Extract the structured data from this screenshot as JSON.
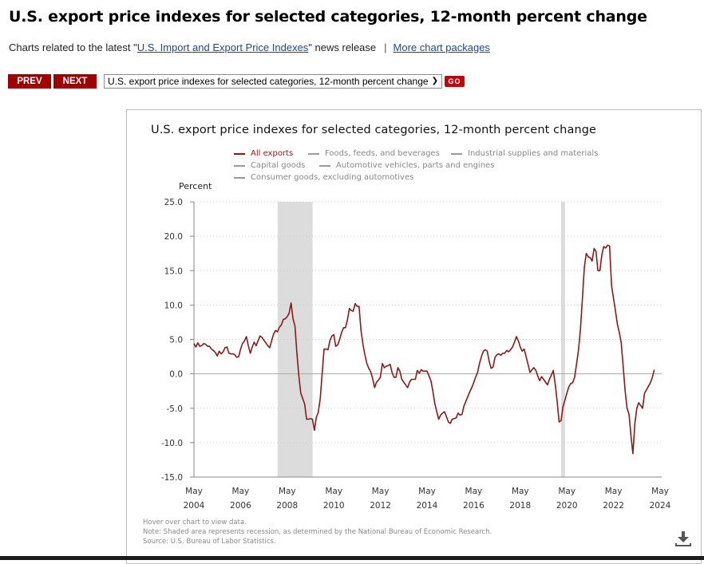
{
  "page": {
    "title": "U.S. export price indexes for selected categories, 12-month percent change",
    "subline": {
      "prefix": "Charts related to the latest \"",
      "release_link": "U.S. Import and Export Price Indexes",
      "suffix": "\" news release",
      "separator": "|",
      "more_link": "More chart packages"
    },
    "nav": {
      "prev_label": "PREV",
      "next_label": "NEXT",
      "select_value": "U.S. export price indexes for selected categories, 12-month percent change",
      "go_label": "GO"
    },
    "footnotes": [
      "Hover over chart to view data.",
      "Note: Shaded area represents recession, as determined by the National Bureau of Economic Research.",
      "Source: U.S. Bureau of Labor Statistics."
    ],
    "download_icon": "download-icon"
  },
  "colors": {
    "brand_red": "#a00000",
    "series_active": "#8b1a1a",
    "series_inactive": "#999999",
    "recession_shade": "#dcdcdc",
    "link": "#1a4a8c"
  },
  "chart_data": {
    "type": "line",
    "title": "U.S. export price indexes for selected categories, 12-month percent change",
    "xlabel": "",
    "ylabel": "Percent",
    "ylim": [
      -15.0,
      25.0
    ],
    "yticks": [
      "25.0",
      "20.0",
      "15.0",
      "10.0",
      "5.0",
      "0.0",
      "-5.0",
      "-10.0",
      "-15.0"
    ],
    "ytick_values": [
      25,
      20,
      15,
      10,
      5,
      0,
      -5,
      -10,
      -15
    ],
    "xticks": [
      {
        "month": "May",
        "year": "2004",
        "t": 2004.33
      },
      {
        "month": "May",
        "year": "2006",
        "t": 2006.33
      },
      {
        "month": "May",
        "year": "2008",
        "t": 2008.33
      },
      {
        "month": "May",
        "year": "2010",
        "t": 2010.33
      },
      {
        "month": "May",
        "year": "2012",
        "t": 2012.33
      },
      {
        "month": "May",
        "year": "2014",
        "t": 2014.33
      },
      {
        "month": "May",
        "year": "2016",
        "t": 2016.33
      },
      {
        "month": "May",
        "year": "2018",
        "t": 2018.33
      },
      {
        "month": "May",
        "year": "2020",
        "t": 2020.33
      },
      {
        "month": "May",
        "year": "2022",
        "t": 2022.33
      },
      {
        "month": "May",
        "year": "2024",
        "t": 2024.33
      }
    ],
    "xlim": [
      2004.33,
      2024.33
    ],
    "grid": "horizontal-dotted",
    "legend": {
      "placement": "top-center",
      "entries": [
        {
          "label": "All exports",
          "active": true
        },
        {
          "label": "Foods, feeds, and beverages",
          "active": false
        },
        {
          "label": "Industrial supplies and materials",
          "active": false
        },
        {
          "label": "Capital goods",
          "active": false
        },
        {
          "label": "Automotive vehicles, parts and engines",
          "active": false
        },
        {
          "label": "Consumer goods, excluding automotives",
          "active": false
        }
      ]
    },
    "recessions": [
      {
        "start": 2007.92,
        "end": 2009.42,
        "label": "Dec 2007 - Jun 2009"
      },
      {
        "start": 2020.08,
        "end": 2020.25,
        "label": "Feb 2020 - Apr 2020"
      }
    ],
    "series": [
      {
        "name": "All exports",
        "start": "May 2004",
        "frequency": "monthly",
        "values": [
          4.4,
          3.9,
          4.5,
          4.0,
          4.1,
          4.4,
          4.3,
          4.0,
          4.0,
          3.6,
          3.4,
          3.1,
          2.6,
          3.3,
          2.9,
          3.2,
          3.8,
          3.9,
          3.0,
          2.9,
          2.9,
          2.8,
          2.4,
          2.5,
          3.6,
          4.4,
          4.8,
          5.4,
          4.1,
          3.0,
          3.9,
          4.6,
          4.1,
          4.8,
          5.5,
          5.3,
          4.9,
          4.5,
          4.1,
          3.8,
          4.8,
          5.8,
          6.3,
          6.1,
          6.8,
          7.1,
          7.9,
          8.0,
          8.3,
          8.8,
          10.3,
          8.0,
          7.0,
          3.0,
          -0.3,
          -2.8,
          -3.6,
          -4.4,
          -6.6,
          -6.6,
          -6.5,
          -6.6,
          -8.2,
          -6.3,
          -5.6,
          -3.6,
          0.0,
          3.6,
          3.6,
          3.5,
          4.8,
          5.5,
          5.7,
          4.0,
          4.2,
          5.0,
          6.0,
          6.7,
          6.7,
          7.8,
          9.5,
          9.2,
          9.1,
          10.2,
          9.8,
          9.8,
          6.3,
          4.3,
          2.8,
          1.5,
          0.8,
          0.3,
          -0.7,
          -2.0,
          -1.2,
          -0.9,
          -0.5,
          1.5,
          0.9,
          1.1,
          1.2,
          1.4,
          0.2,
          -0.5,
          -0.5,
          0.9,
          0.4,
          -0.8,
          -1.2,
          -1.6,
          -2.0,
          -1.2,
          -0.8,
          -0.8,
          -0.8,
          0.5,
          0.1,
          0.6,
          0.4,
          0.4,
          0.4,
          -0.3,
          -1.0,
          -2.5,
          -4.3,
          -5.5,
          -6.6,
          -6.0,
          -5.7,
          -5.5,
          -6.2,
          -7.0,
          -7.2,
          -6.6,
          -6.5,
          -6.4,
          -5.7,
          -6.0,
          -5.9,
          -4.7,
          -4.0,
          -3.3,
          -2.6,
          -2.0,
          -1.3,
          -0.5,
          0.2,
          1.5,
          2.5,
          3.3,
          3.5,
          3.3,
          1.8,
          0.8,
          1.0,
          2.4,
          2.8,
          2.9,
          2.7,
          3.0,
          3.0,
          3.4,
          3.2,
          3.5,
          3.9,
          4.6,
          5.4,
          4.8,
          3.9,
          3.3,
          3.6,
          2.5,
          1.4,
          0.2,
          0.6,
          0.9,
          0.5,
          -0.3,
          -1.0,
          -0.4,
          -0.8,
          -1.2,
          -1.6,
          -0.8,
          -0.2,
          0.5,
          -1.5,
          -4.0,
          -7.0,
          -6.8,
          -4.8,
          -3.8,
          -2.8,
          -1.9,
          -1.4,
          -1.3,
          -0.5,
          1.5,
          3.5,
          6.5,
          11.0,
          15.5,
          17.5,
          17.0,
          16.9,
          16.4,
          18.2,
          17.8,
          15.0,
          15.0,
          17.3,
          18.5,
          18.3,
          18.7,
          18.6,
          12.8,
          11.0,
          9.2,
          7.2,
          6.0,
          4.5,
          1.0,
          -2.5,
          -5.0,
          -5.9,
          -9.0,
          -11.6,
          -7.2,
          -5.0,
          -4.2,
          -4.6,
          -5.0,
          -2.8,
          -2.3,
          -1.8,
          -1.3,
          -0.5,
          0.6
        ]
      }
    ]
  }
}
